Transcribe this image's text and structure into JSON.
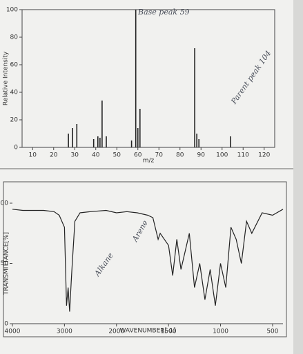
{
  "chart_data": [
    {
      "type": "stick",
      "ylabel": "Relative Intensity",
      "xlabel": "m/z",
      "x": [
        27,
        29,
        31,
        39,
        41,
        42,
        43,
        45,
        57,
        59,
        60,
        61,
        87,
        88,
        89,
        104
      ],
      "values": [
        10,
        14,
        17,
        6,
        8,
        7,
        34,
        8,
        5,
        100,
        14,
        28,
        72,
        10,
        6,
        8
      ],
      "color": "#222222",
      "xlim": [
        5,
        125
      ],
      "xticks": [
        10,
        20,
        30,
        40,
        50,
        60,
        70,
        80,
        90,
        100,
        110,
        120
      ],
      "ylim": [
        0,
        100
      ],
      "yticks": [
        0,
        20,
        40,
        60,
        80,
        100
      ],
      "annotations": [
        "Base peak 59",
        "Parent peak 104"
      ]
    },
    {
      "type": "line",
      "ylabel": "TRANSMITTANCE[%]",
      "xlabel": "WAVENUMBER[-1]",
      "x": [
        4000,
        3800,
        3600,
        3400,
        3200,
        3100,
        3000,
        2960,
        2930,
        2900,
        2870,
        2850,
        2800,
        2700,
        2500,
        2200,
        2000,
        1900,
        1800,
        1700,
        1650,
        1600,
        1580,
        1500,
        1460,
        1420,
        1380,
        1300,
        1250,
        1200,
        1150,
        1100,
        1050,
        1000,
        950,
        900,
        850,
        800,
        750,
        700,
        600,
        500,
        400
      ],
      "values": [
        95,
        94,
        94,
        94,
        93,
        90,
        80,
        15,
        30,
        10,
        35,
        50,
        85,
        92,
        93,
        94,
        92,
        93,
        92,
        90,
        88,
        70,
        75,
        65,
        40,
        70,
        45,
        75,
        30,
        50,
        20,
        45,
        15,
        50,
        30,
        80,
        70,
        50,
        85,
        75,
        92,
        90,
        95
      ],
      "color": "#222222",
      "xlim": [
        4000,
        400
      ],
      "xticks": [
        4000,
        3000,
        2000,
        1500,
        1000,
        500
      ],
      "ylim": [
        0,
        100
      ],
      "yticks": [
        0,
        50,
        100
      ],
      "annotations": [
        "Alkane",
        "Arene"
      ]
    }
  ]
}
